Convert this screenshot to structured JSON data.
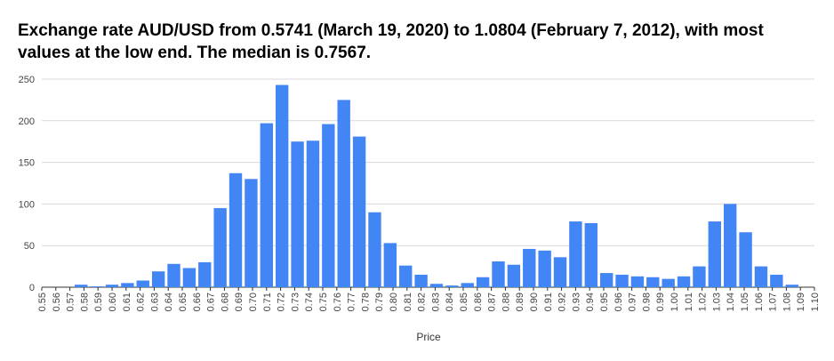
{
  "chart_data": {
    "type": "histogram",
    "title_lines": [
      "Exchange rate AUD/USD from 0.5741 (March 19, 2020) to 1.0804 (February 7, 2012), with most",
      "values at the low end. The median is 0.7567."
    ],
    "x_label": "Price",
    "color": "#4285f4",
    "bins": [
      0.5725,
      0.5835,
      0.5945,
      0.6055,
      0.6165,
      0.6275,
      0.6385,
      0.6495,
      0.6605,
      0.6715,
      0.6825,
      0.6935,
      0.7045,
      0.7155,
      0.7265,
      0.7375,
      0.7485,
      0.7595,
      0.7705,
      0.7815,
      0.7925,
      0.8035,
      0.8145,
      0.8255,
      0.8365,
      0.8475,
      0.8585,
      0.8695,
      0.8805,
      0.8915,
      0.9025,
      0.9135,
      0.9245,
      0.9355,
      0.9465,
      0.9575,
      0.9685,
      0.9795,
      0.9905,
      1.0015,
      1.0125,
      1.0235,
      1.0345,
      1.0455,
      1.0565,
      1.0675,
      1.0785,
      1.0895
    ],
    "values": [
      3,
      1,
      3,
      5,
      8,
      19,
      28,
      23,
      30,
      95,
      137,
      130,
      197,
      243,
      175,
      176,
      196,
      225,
      181,
      90,
      53,
      26,
      15,
      4,
      2,
      5,
      12,
      31,
      27,
      46,
      44,
      36,
      79,
      77,
      17,
      15,
      13,
      12,
      10,
      13,
      25,
      79,
      100,
      66,
      25,
      15,
      3
    ],
    "xlim": [
      0.55,
      1.1
    ],
    "xticks": [
      0.55,
      0.56,
      0.57,
      0.58,
      0.59,
      {
        "value": 0.6,
        "label": "0.60"
      },
      0.61,
      0.62,
      0.63,
      0.64,
      0.65,
      0.66,
      0.67,
      0.68,
      0.69,
      {
        "value": 0.7,
        "label": "0.70"
      },
      0.71,
      0.72,
      0.73,
      0.74,
      0.75,
      0.76,
      0.77,
      0.78,
      0.79,
      {
        "value": 0.8,
        "label": "0.80"
      },
      0.81,
      0.82,
      0.83,
      0.84,
      0.85,
      0.86,
      0.87,
      0.88,
      0.89,
      {
        "value": 0.9,
        "label": "0.90"
      },
      0.91,
      0.92,
      0.93,
      0.94,
      0.95,
      0.96,
      0.97,
      0.98,
      0.99,
      {
        "value": 1.0,
        "label": "1.00"
      },
      1.01,
      1.02,
      1.03,
      1.04,
      1.05,
      1.06,
      1.07,
      1.08,
      1.09,
      {
        "value": 1.1,
        "label": "1.10"
      }
    ],
    "ylim": [
      0,
      250
    ],
    "yticks": [
      0,
      50,
      100,
      150,
      200,
      250
    ],
    "grid": true
  }
}
